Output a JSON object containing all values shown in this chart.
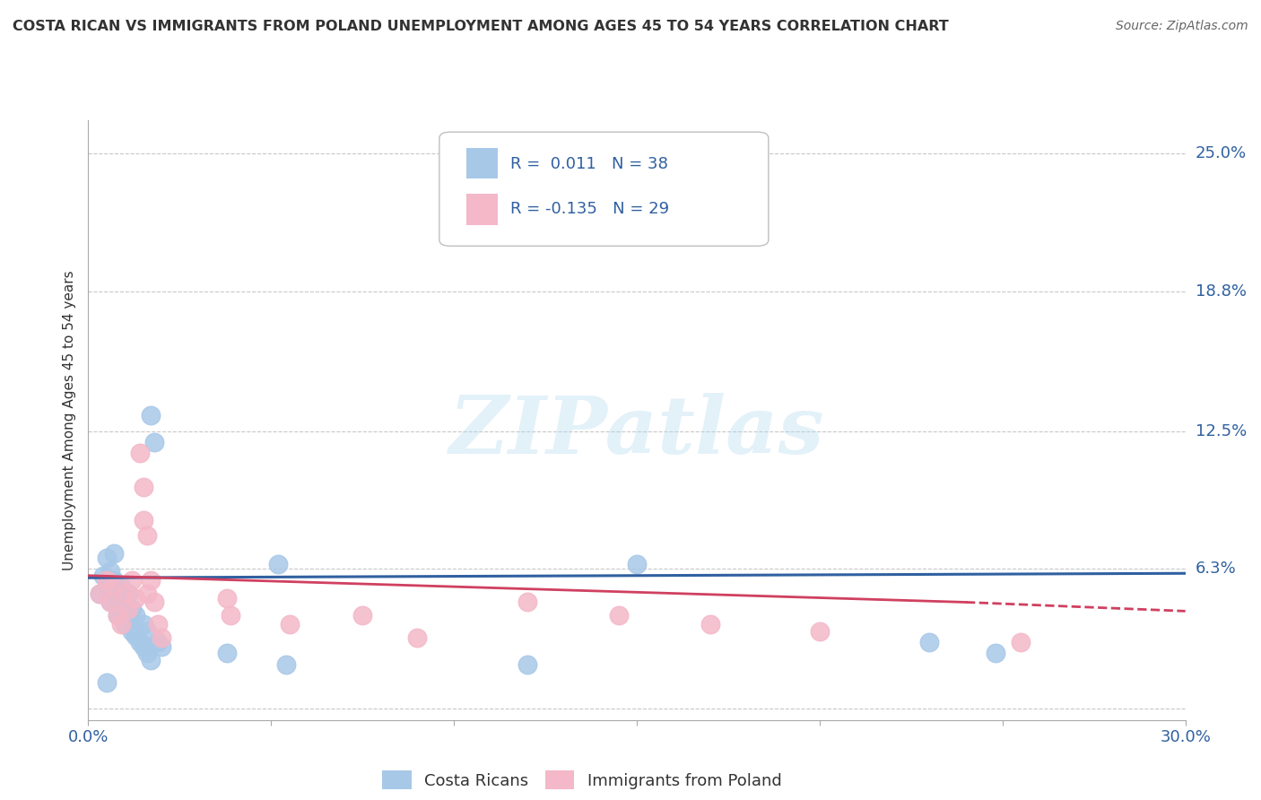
{
  "title": "COSTA RICAN VS IMMIGRANTS FROM POLAND UNEMPLOYMENT AMONG AGES 45 TO 54 YEARS CORRELATION CHART",
  "source": "Source: ZipAtlas.com",
  "ylabel": "Unemployment Among Ages 45 to 54 years",
  "xlim": [
    0.0,
    0.3
  ],
  "ylim": [
    -0.005,
    0.265
  ],
  "yticks": [
    0.0,
    0.063,
    0.125,
    0.188,
    0.25
  ],
  "ytick_labels": [
    "",
    "6.3%",
    "12.5%",
    "18.8%",
    "25.0%"
  ],
  "blue_R": "0.011",
  "blue_N": "38",
  "pink_R": "-0.135",
  "pink_N": "29",
  "blue_color": "#a8c8e8",
  "pink_color": "#f4b8c8",
  "trend_blue_color": "#3060a0",
  "trend_pink_color": "#d04060",
  "blue_scatter": [
    [
      0.003,
      0.052
    ],
    [
      0.004,
      0.06
    ],
    [
      0.005,
      0.055
    ],
    [
      0.005,
      0.068
    ],
    [
      0.006,
      0.048
    ],
    [
      0.006,
      0.062
    ],
    [
      0.007,
      0.058
    ],
    [
      0.007,
      0.07
    ],
    [
      0.008,
      0.042
    ],
    [
      0.008,
      0.05
    ],
    [
      0.009,
      0.045
    ],
    [
      0.009,
      0.055
    ],
    [
      0.01,
      0.038
    ],
    [
      0.01,
      0.048
    ],
    [
      0.011,
      0.04
    ],
    [
      0.011,
      0.052
    ],
    [
      0.012,
      0.035
    ],
    [
      0.012,
      0.045
    ],
    [
      0.013,
      0.033
    ],
    [
      0.013,
      0.042
    ],
    [
      0.014,
      0.03
    ],
    [
      0.015,
      0.028
    ],
    [
      0.015,
      0.038
    ],
    [
      0.016,
      0.025
    ],
    [
      0.016,
      0.035
    ],
    [
      0.017,
      0.022
    ],
    [
      0.017,
      0.132
    ],
    [
      0.018,
      0.12
    ],
    [
      0.019,
      0.03
    ],
    [
      0.02,
      0.028
    ],
    [
      0.038,
      0.025
    ],
    [
      0.052,
      0.065
    ],
    [
      0.054,
      0.02
    ],
    [
      0.12,
      0.02
    ],
    [
      0.15,
      0.065
    ],
    [
      0.23,
      0.03
    ],
    [
      0.248,
      0.025
    ],
    [
      0.005,
      0.012
    ]
  ],
  "pink_scatter": [
    [
      0.003,
      0.052
    ],
    [
      0.005,
      0.058
    ],
    [
      0.006,
      0.048
    ],
    [
      0.007,
      0.055
    ],
    [
      0.008,
      0.042
    ],
    [
      0.009,
      0.038
    ],
    [
      0.01,
      0.052
    ],
    [
      0.011,
      0.045
    ],
    [
      0.012,
      0.058
    ],
    [
      0.013,
      0.05
    ],
    [
      0.014,
      0.115
    ],
    [
      0.015,
      0.1
    ],
    [
      0.015,
      0.085
    ],
    [
      0.016,
      0.078
    ],
    [
      0.016,
      0.052
    ],
    [
      0.017,
      0.058
    ],
    [
      0.018,
      0.048
    ],
    [
      0.019,
      0.038
    ],
    [
      0.02,
      0.032
    ],
    [
      0.038,
      0.05
    ],
    [
      0.039,
      0.042
    ],
    [
      0.055,
      0.038
    ],
    [
      0.075,
      0.042
    ],
    [
      0.09,
      0.032
    ],
    [
      0.12,
      0.048
    ],
    [
      0.145,
      0.042
    ],
    [
      0.17,
      0.038
    ],
    [
      0.2,
      0.035
    ],
    [
      0.255,
      0.03
    ]
  ],
  "watermark": "ZIPatlas",
  "background_color": "#ffffff",
  "grid_color": "#c8c8c8"
}
